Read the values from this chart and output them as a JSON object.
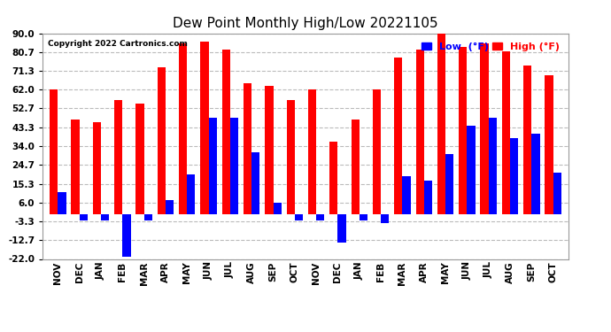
{
  "title": "Dew Point Monthly High/Low 20221105",
  "copyright": "Copyright 2022 Cartronics.com",
  "yticks": [
    90.0,
    80.7,
    71.3,
    62.0,
    52.7,
    43.3,
    34.0,
    24.7,
    15.3,
    6.0,
    -3.3,
    -12.7,
    -22.0
  ],
  "ylim": [
    -22.0,
    90.0
  ],
  "months": [
    "NOV",
    "DEC",
    "JAN",
    "FEB",
    "MAR",
    "APR",
    "MAY",
    "JUN",
    "JUL",
    "AUG",
    "SEP",
    "OCT",
    "NOV",
    "DEC",
    "JAN",
    "FEB",
    "MAR",
    "APR",
    "MAY",
    "JUN",
    "JUL",
    "AUG",
    "SEP",
    "OCT"
  ],
  "high_vals": [
    62.0,
    47.0,
    46.0,
    57.0,
    55.0,
    73.0,
    85.0,
    86.0,
    82.0,
    65.0,
    64.0,
    57.0,
    62.0,
    36.0,
    47.0,
    62.0,
    78.0,
    82.0,
    90.0,
    83.0,
    85.0,
    81.0,
    74.0,
    69.0
  ],
  "low_vals": [
    11.0,
    -3.0,
    -3.0,
    -21.0,
    -3.0,
    7.0,
    20.0,
    48.0,
    48.0,
    31.0,
    6.0,
    -3.0,
    -3.0,
    -14.0,
    -3.0,
    -4.0,
    19.0,
    17.0,
    30.0,
    44.0,
    48.0,
    38.0,
    40.0,
    21.0
  ],
  "high_color": "#ff0000",
  "low_color": "#0000ff",
  "bar_width": 0.38,
  "background_color": "#ffffff",
  "grid_color": "#bbbbbb",
  "title_fontsize": 11,
  "tick_fontsize": 7.5
}
